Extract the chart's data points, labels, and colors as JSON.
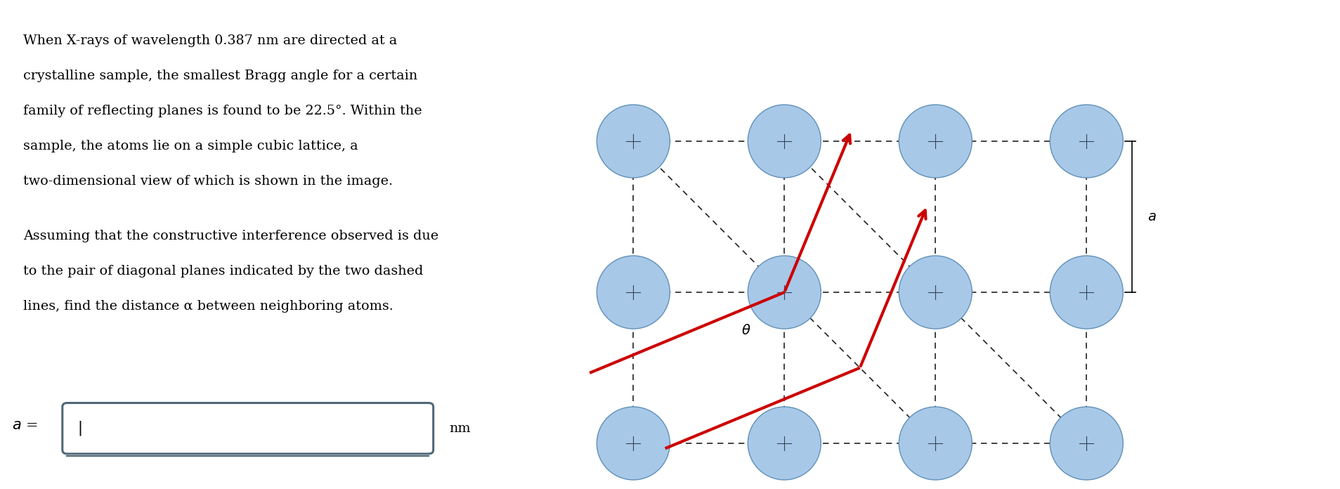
{
  "bg_color": "#ffffff",
  "text_color": "#000000",
  "paragraph1_lines": [
    "When X-rays of wavelength 0.387 nm are directed at a",
    "crystalline sample, the smallest Bragg angle for a certain",
    "family of reflecting planes is found to be 22.5°. Within the",
    "sample, the atoms lie on a simple cubic lattice, a",
    "two-dimensional view of which is shown in the image."
  ],
  "paragraph2_lines": [
    "Assuming that the constructive interference observed is due",
    "to the pair of diagonal planes indicated by the two dashed",
    "lines, find the distance α between neighboring atoms."
  ],
  "atom_color_face": "#a8c8e8",
  "atom_color_edge": "#6090b8",
  "dashed_color": "#222222",
  "arrow_color": "#cc0000",
  "label_a": "a",
  "label_theta": "θ",
  "unit_label": "nm",
  "sidebar_color": "#c0c8d0"
}
